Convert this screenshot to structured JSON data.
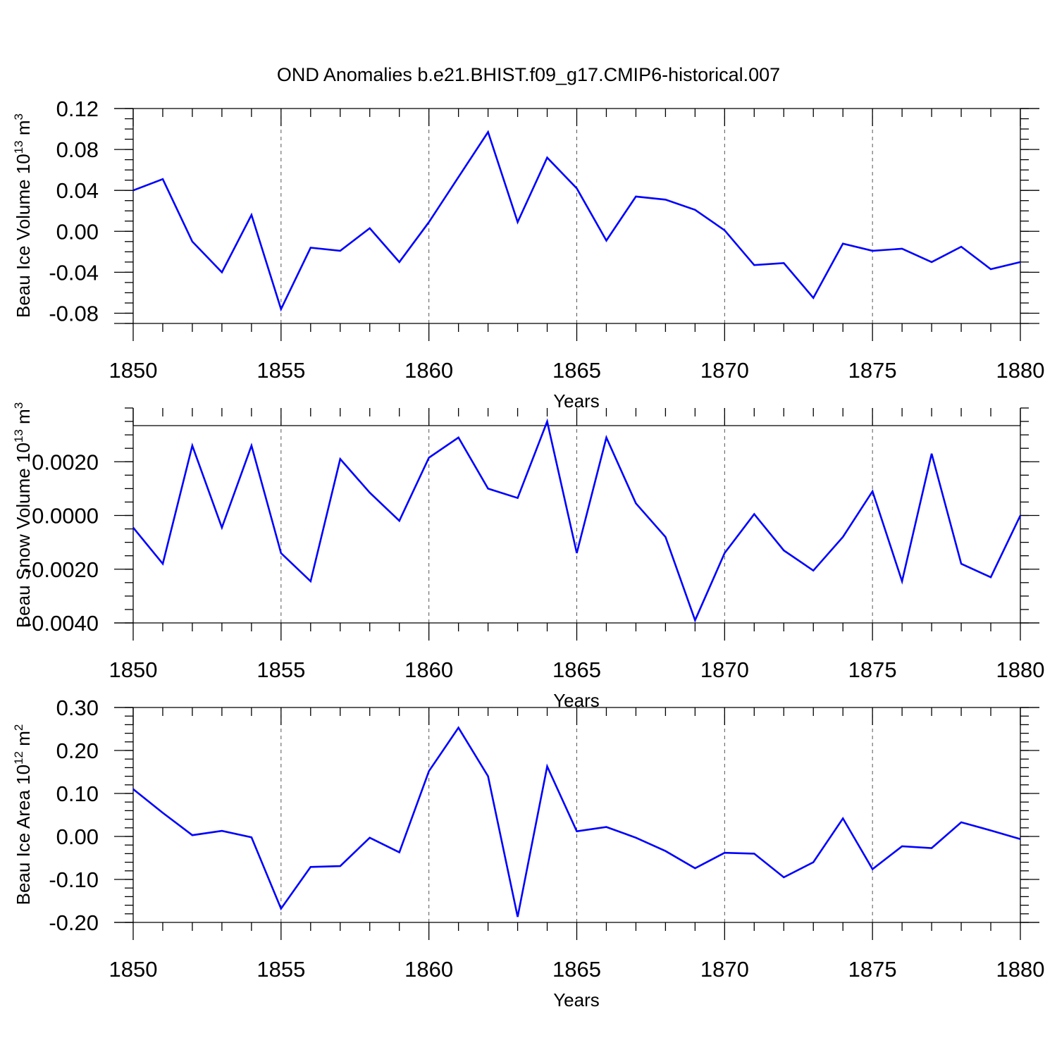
{
  "title": "OND Anomalies b.e21.BHIST.f09_g17.CMIP6-historical.007",
  "chart_data": [
    {
      "type": "line",
      "ylabel": "Beau Ice Volume 10",
      "ylabel_sup": "13",
      "ylabel_unit": "m",
      "ylabel_unit_sup": "3",
      "xlabel": "Years",
      "x": [
        1850,
        1851,
        1852,
        1853,
        1854,
        1855,
        1856,
        1857,
        1858,
        1859,
        1860,
        1861,
        1862,
        1863,
        1864,
        1865,
        1866,
        1867,
        1868,
        1869,
        1870,
        1871,
        1872,
        1873,
        1874,
        1875,
        1876,
        1877,
        1878,
        1879,
        1880
      ],
      "values": [
        0.04,
        0.051,
        -0.01,
        -0.04,
        0.016,
        -0.076,
        -0.016,
        -0.019,
        0.003,
        -0.03,
        0.009,
        0.053,
        0.097,
        0.009,
        0.072,
        0.042,
        -0.009,
        0.034,
        0.031,
        0.021,
        0.001,
        -0.033,
        -0.031,
        -0.065,
        -0.012,
        -0.019,
        -0.017,
        -0.03,
        -0.015,
        -0.037,
        -0.03
      ],
      "xlim": [
        1850,
        1880
      ],
      "ylim": [
        -0.09,
        0.12
      ],
      "xticks": [
        1850,
        1855,
        1860,
        1865,
        1870,
        1875,
        1880
      ],
      "xtick_labels": [
        "1850",
        "1855",
        "1860",
        "1865",
        "1870",
        "1875",
        "1880"
      ],
      "yticks": [
        -0.08,
        -0.04,
        0.0,
        0.04,
        0.08,
        0.12
      ],
      "ytick_labels": [
        "-0.08",
        "-0.04",
        "0.00",
        "0.04",
        "0.08",
        "0.12"
      ],
      "yminor_step": 0.01,
      "xgrid": [
        1855,
        1860,
        1865,
        1870,
        1875
      ],
      "ref_lines": [
        0.12
      ]
    },
    {
      "type": "line",
      "ylabel": "Beau Snow Volume 10",
      "ylabel_sup": "13",
      "ylabel_unit": "m",
      "ylabel_unit_sup": "3",
      "xlabel": "Years",
      "x": [
        1850,
        1851,
        1852,
        1853,
        1854,
        1855,
        1856,
        1857,
        1858,
        1859,
        1860,
        1861,
        1862,
        1863,
        1864,
        1865,
        1866,
        1867,
        1868,
        1869,
        1870,
        1871,
        1872,
        1873,
        1874,
        1875,
        1876,
        1877,
        1878,
        1879,
        1880
      ],
      "values": [
        -0.00045,
        -0.0018,
        0.0026,
        -0.00045,
        0.0026,
        -0.0014,
        -0.00245,
        0.0021,
        0.00085,
        -0.0002,
        0.00215,
        0.0029,
        0.001,
        0.00065,
        0.0035,
        -0.0014,
        0.0029,
        0.00045,
        -0.0008,
        -0.0039,
        -0.0014,
        5e-05,
        -0.0013,
        -0.00205,
        -0.0008,
        0.0009,
        -0.00245,
        0.0023,
        -0.0018,
        -0.0023,
        0.0
      ],
      "xlim": [
        1850,
        1880
      ],
      "ylim": [
        -0.004,
        0.004
      ],
      "xticks": [
        1850,
        1855,
        1860,
        1865,
        1870,
        1875,
        1880
      ],
      "xtick_labels": [
        "1850",
        "1855",
        "1860",
        "1865",
        "1870",
        "1875",
        "1880"
      ],
      "yticks": [
        -0.004,
        -0.002,
        0.0,
        0.002
      ],
      "ytick_labels": [
        "-0.0040",
        "-0.0020",
        "0.0000",
        "0.0020"
      ],
      "yminor_step": 0.0005,
      "xgrid": [
        1855,
        1860,
        1865,
        1870,
        1875
      ],
      "ref_lines": []
    },
    {
      "type": "line",
      "ylabel": "Beau Ice Area 10",
      "ylabel_sup": "12",
      "ylabel_unit": "m",
      "ylabel_unit_sup": "2",
      "xlabel": "Years",
      "x": [
        1850,
        1851,
        1852,
        1853,
        1854,
        1855,
        1856,
        1857,
        1858,
        1859,
        1860,
        1861,
        1862,
        1863,
        1864,
        1865,
        1866,
        1867,
        1868,
        1869,
        1870,
        1871,
        1872,
        1873,
        1874,
        1875,
        1876,
        1877,
        1878,
        1879,
        1880
      ],
      "values": [
        0.11,
        0.055,
        0.003,
        0.013,
        -0.002,
        -0.168,
        -0.071,
        -0.069,
        -0.003,
        -0.037,
        0.152,
        0.253,
        0.14,
        -0.187,
        0.163,
        0.012,
        0.022,
        -0.003,
        -0.034,
        -0.074,
        -0.038,
        -0.04,
        -0.095,
        -0.06,
        0.042,
        -0.076,
        -0.023,
        -0.027,
        0.033,
        0.014,
        -0.006
      ],
      "xlim": [
        1850,
        1880
      ],
      "ylim": [
        -0.2,
        0.3
      ],
      "xticks": [
        1850,
        1855,
        1860,
        1865,
        1870,
        1875,
        1880
      ],
      "xtick_labels": [
        "1850",
        "1855",
        "1860",
        "1865",
        "1870",
        "1875",
        "1880"
      ],
      "yticks": [
        -0.2,
        -0.1,
        0.0,
        0.1,
        0.2,
        0.3
      ],
      "ytick_labels": [
        "-0.20",
        "-0.10",
        "0.00",
        "0.10",
        "0.20",
        "0.30"
      ],
      "yminor_step": 0.02,
      "xgrid": [
        1855,
        1860,
        1865,
        1870,
        1875
      ],
      "ref_lines": [
        0.3
      ]
    }
  ]
}
